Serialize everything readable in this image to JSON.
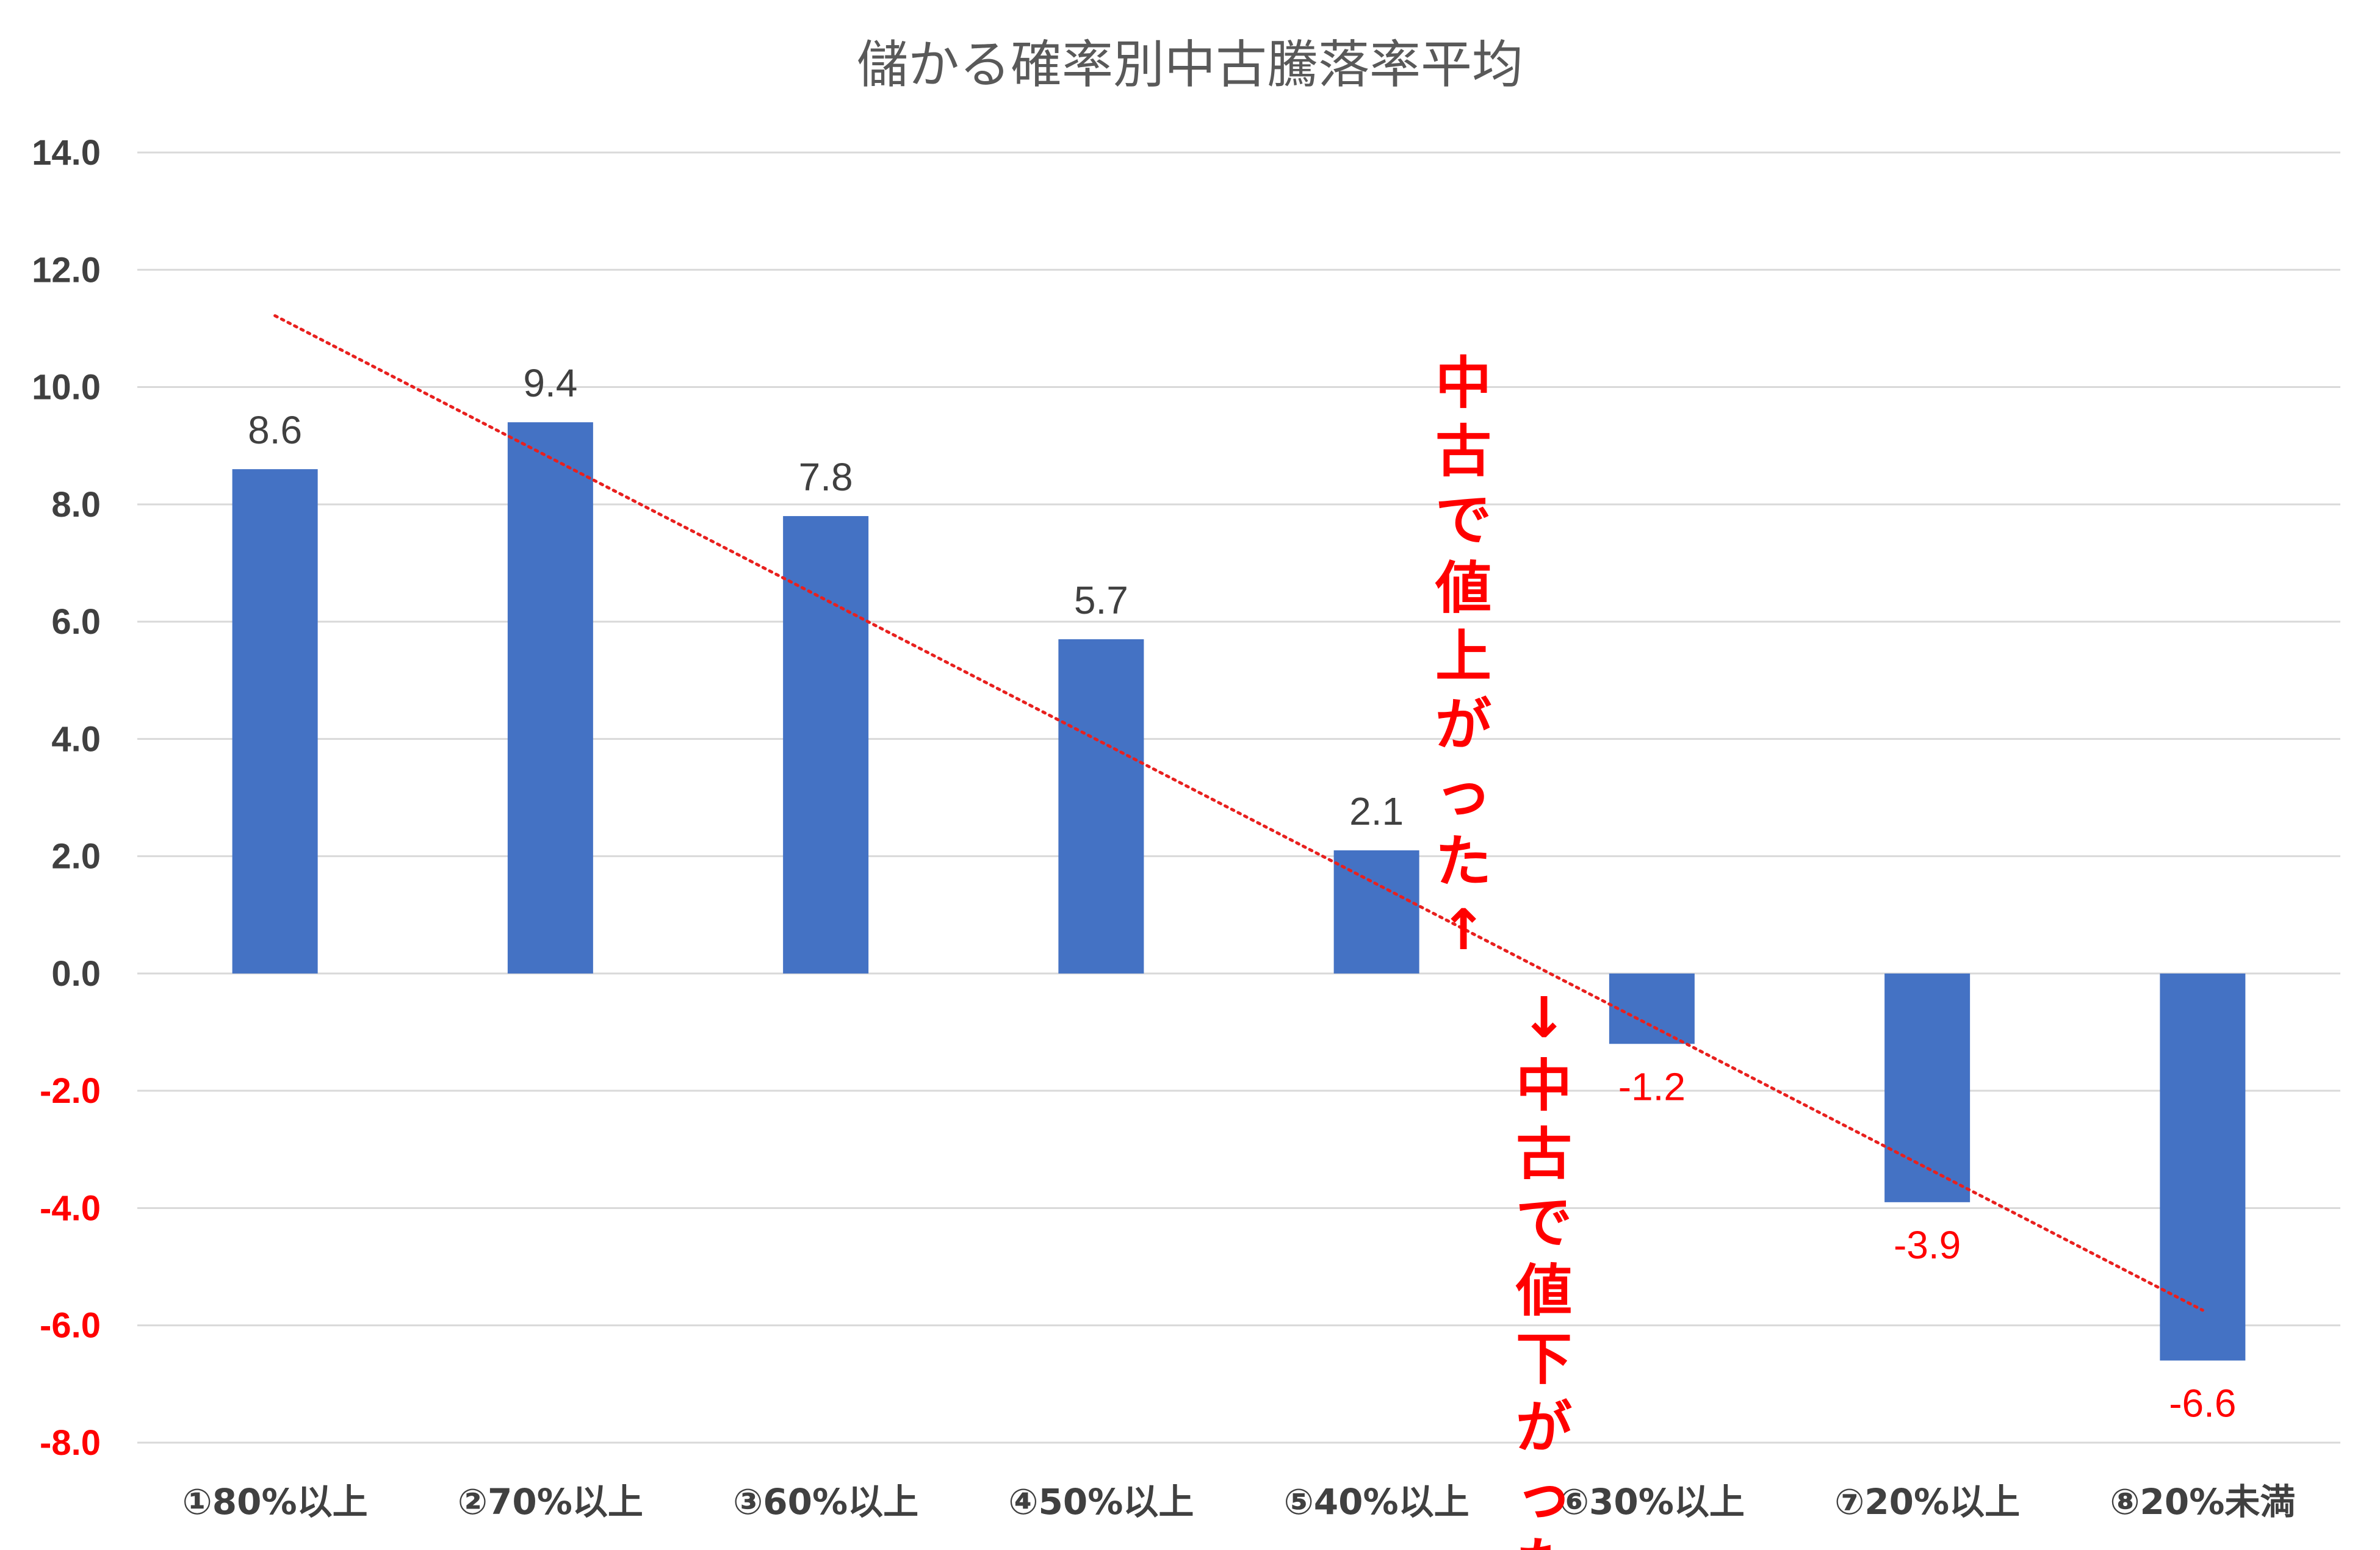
{
  "chart_data": {
    "type": "bar",
    "title": "儲かる確率別中古騰落率平均",
    "categories": [
      "①80%以上",
      "②70%以上",
      "③60%以上",
      "④50%以上",
      "⑤40%以上",
      "⑥30%以上",
      "⑦20%以上",
      "⑧20%未満"
    ],
    "values": [
      8.6,
      9.4,
      7.8,
      5.7,
      2.1,
      -1.2,
      -3.9,
      -6.6
    ],
    "data_labels": [
      "8.6",
      "9.4",
      "7.8",
      "5.7",
      "2.1",
      "-1.2",
      "-3.9",
      "-6.6"
    ],
    "ylim": [
      -8.0,
      14.0
    ],
    "yticks": [
      "14.0",
      "12.0",
      "10.0",
      "8.0",
      "6.0",
      "4.0",
      "2.0",
      "0.0",
      "-2.0",
      "-4.0",
      "-6.0",
      "-8.0"
    ],
    "ytick_values": [
      14,
      12,
      10,
      8,
      6,
      4,
      2,
      0,
      -2,
      -4,
      -6,
      -8
    ],
    "grid": true,
    "trendline": {
      "type": "linear",
      "style": "dotted",
      "color": "#e8201e"
    },
    "annotations": {
      "up": "中古で値上がった↑",
      "down": "↓中古で値下がった"
    },
    "colors": {
      "bar": "#4472c4",
      "positive_text": "#404040",
      "negative_text": "#ff0000",
      "annotation": "#ff0000",
      "grid": "#d9d9d9",
      "title": "#595959"
    }
  }
}
